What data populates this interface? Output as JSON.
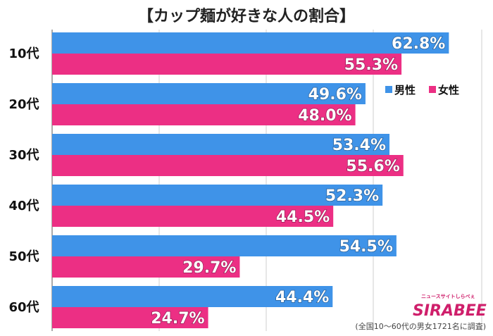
{
  "chart_data": {
    "type": "bar",
    "orientation": "horizontal",
    "title": "【カップ麺が好きな人の割合】",
    "categories": [
      "10代",
      "20代",
      "30代",
      "40代",
      "50代",
      "60代"
    ],
    "series": [
      {
        "name": "男性",
        "color": "#3f93e8",
        "values": [
          62.8,
          49.6,
          53.4,
          52.3,
          54.5,
          44.4
        ]
      },
      {
        "name": "女性",
        "color": "#ec2f84",
        "values": [
          55.3,
          48.0,
          55.6,
          44.5,
          29.7,
          24.7
        ]
      }
    ],
    "value_suffix": "%",
    "xlim": [
      0,
      68
    ],
    "grid": true,
    "legend_position": "top-right"
  },
  "footnote": "(全国10～60代の男女1721名に調査)",
  "logo": {
    "name": "SIRABEE",
    "tagline": "ニュースサイトしらべぇ"
  }
}
